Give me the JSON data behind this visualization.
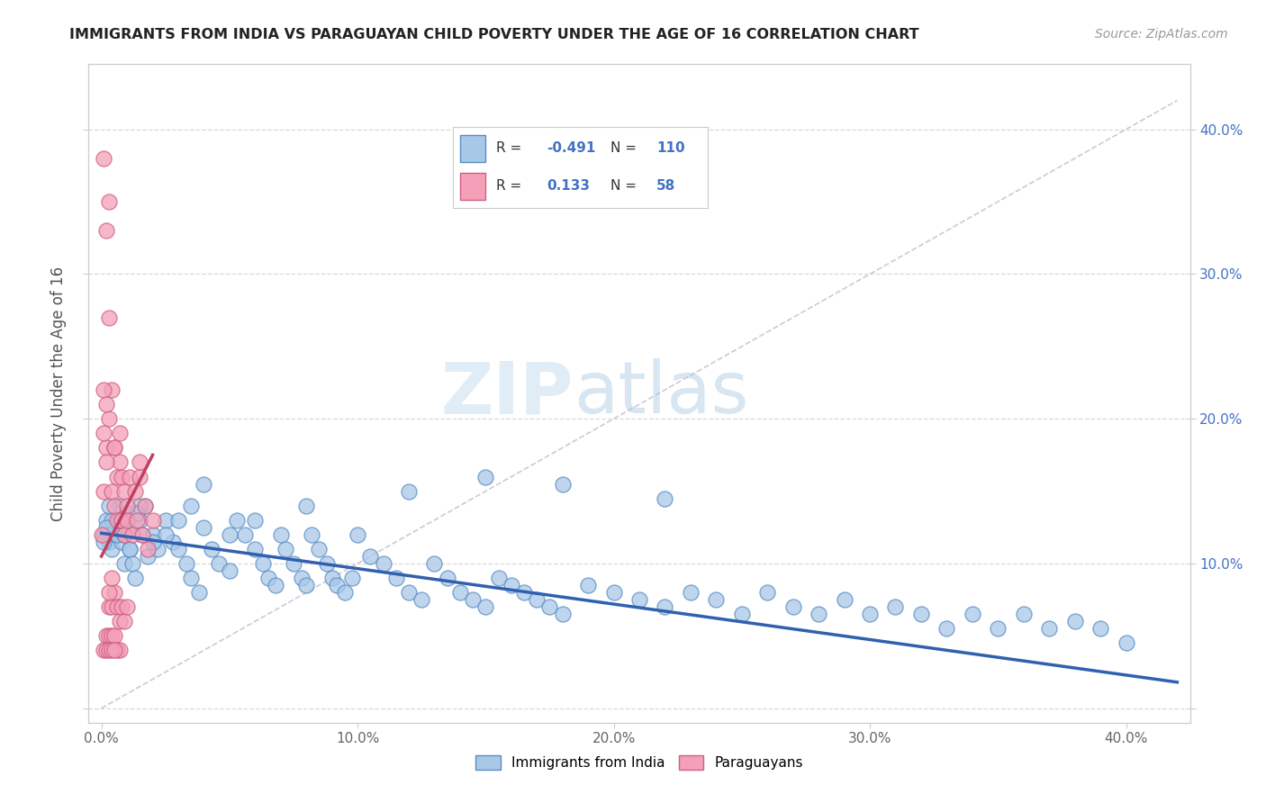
{
  "title": "IMMIGRANTS FROM INDIA VS PARAGUAYAN CHILD POVERTY UNDER THE AGE OF 16 CORRELATION CHART",
  "source": "Source: ZipAtlas.com",
  "ylabel": "Child Poverty Under the Age of 16",
  "x_ticks": [
    0.0,
    0.1,
    0.2,
    0.3,
    0.4
  ],
  "x_tick_labels": [
    "0.0%",
    "10.0%",
    "20.0%",
    "30.0%",
    "40.0%"
  ],
  "y_ticks": [
    0.0,
    0.1,
    0.2,
    0.3,
    0.4
  ],
  "y_right_labels": [
    "",
    "10.0%",
    "20.0%",
    "30.0%",
    "40.0%"
  ],
  "xlim": [
    -0.005,
    0.425
  ],
  "ylim": [
    -0.01,
    0.445
  ],
  "color_blue": "#a8c8e8",
  "color_blue_dark": "#5b8ec4",
  "color_blue_trend": "#3060b0",
  "color_pink": "#f4a0b8",
  "color_pink_dark": "#d06080",
  "color_pink_trend": "#c04060",
  "color_ref_line": "#c8b8d0",
  "watermark_zip": "ZIP",
  "watermark_atlas": "atlas",
  "blue_scatter_x": [
    0.001,
    0.002,
    0.003,
    0.004,
    0.005,
    0.006,
    0.007,
    0.008,
    0.009,
    0.01,
    0.011,
    0.012,
    0.013,
    0.015,
    0.016,
    0.017,
    0.018,
    0.02,
    0.022,
    0.025,
    0.028,
    0.03,
    0.033,
    0.035,
    0.038,
    0.04,
    0.043,
    0.046,
    0.05,
    0.053,
    0.056,
    0.06,
    0.063,
    0.065,
    0.068,
    0.07,
    0.072,
    0.075,
    0.078,
    0.08,
    0.082,
    0.085,
    0.088,
    0.09,
    0.092,
    0.095,
    0.098,
    0.1,
    0.105,
    0.11,
    0.115,
    0.12,
    0.125,
    0.13,
    0.135,
    0.14,
    0.145,
    0.15,
    0.155,
    0.16,
    0.165,
    0.17,
    0.175,
    0.18,
    0.19,
    0.2,
    0.21,
    0.22,
    0.23,
    0.24,
    0.25,
    0.26,
    0.27,
    0.28,
    0.29,
    0.3,
    0.31,
    0.32,
    0.33,
    0.34,
    0.35,
    0.36,
    0.37,
    0.38,
    0.39,
    0.4,
    0.18,
    0.22,
    0.15,
    0.12,
    0.08,
    0.06,
    0.05,
    0.04,
    0.035,
    0.03,
    0.025,
    0.02,
    0.015,
    0.01,
    0.008,
    0.006,
    0.004,
    0.002,
    0.001,
    0.003,
    0.007,
    0.009,
    0.011,
    0.014
  ],
  "blue_scatter_y": [
    0.12,
    0.13,
    0.115,
    0.11,
    0.13,
    0.12,
    0.14,
    0.115,
    0.1,
    0.125,
    0.11,
    0.1,
    0.09,
    0.13,
    0.12,
    0.14,
    0.105,
    0.12,
    0.11,
    0.13,
    0.115,
    0.11,
    0.1,
    0.09,
    0.08,
    0.125,
    0.11,
    0.1,
    0.095,
    0.13,
    0.12,
    0.11,
    0.1,
    0.09,
    0.085,
    0.12,
    0.11,
    0.1,
    0.09,
    0.085,
    0.12,
    0.11,
    0.1,
    0.09,
    0.085,
    0.08,
    0.09,
    0.12,
    0.105,
    0.1,
    0.09,
    0.08,
    0.075,
    0.1,
    0.09,
    0.08,
    0.075,
    0.07,
    0.09,
    0.085,
    0.08,
    0.075,
    0.07,
    0.065,
    0.085,
    0.08,
    0.075,
    0.07,
    0.08,
    0.075,
    0.065,
    0.08,
    0.07,
    0.065,
    0.075,
    0.065,
    0.07,
    0.065,
    0.055,
    0.065,
    0.055,
    0.065,
    0.055,
    0.06,
    0.055,
    0.045,
    0.155,
    0.145,
    0.16,
    0.15,
    0.14,
    0.13,
    0.12,
    0.155,
    0.14,
    0.13,
    0.12,
    0.115,
    0.14,
    0.135,
    0.125,
    0.12,
    0.13,
    0.125,
    0.115,
    0.14,
    0.13,
    0.12,
    0.11,
    0.135
  ],
  "pink_scatter_x": [
    0.0,
    0.001,
    0.001,
    0.002,
    0.002,
    0.003,
    0.003,
    0.004,
    0.004,
    0.005,
    0.005,
    0.006,
    0.006,
    0.007,
    0.007,
    0.008,
    0.008,
    0.009,
    0.009,
    0.01,
    0.01,
    0.011,
    0.012,
    0.013,
    0.014,
    0.015,
    0.016,
    0.017,
    0.018,
    0.02,
    0.001,
    0.002,
    0.003,
    0.004,
    0.005,
    0.006,
    0.007,
    0.008,
    0.009,
    0.01,
    0.002,
    0.003,
    0.004,
    0.005,
    0.006,
    0.007,
    0.001,
    0.002,
    0.003,
    0.004,
    0.001,
    0.002,
    0.003,
    0.004,
    0.005,
    0.003,
    0.005,
    0.015
  ],
  "pink_scatter_y": [
    0.12,
    0.38,
    0.15,
    0.33,
    0.18,
    0.35,
    0.2,
    0.22,
    0.15,
    0.18,
    0.14,
    0.16,
    0.13,
    0.17,
    0.19,
    0.13,
    0.16,
    0.12,
    0.15,
    0.14,
    0.13,
    0.16,
    0.12,
    0.15,
    0.13,
    0.16,
    0.12,
    0.14,
    0.11,
    0.13,
    0.22,
    0.21,
    0.07,
    0.07,
    0.08,
    0.07,
    0.06,
    0.07,
    0.06,
    0.07,
    0.05,
    0.05,
    0.05,
    0.05,
    0.04,
    0.04,
    0.19,
    0.17,
    0.08,
    0.09,
    0.04,
    0.04,
    0.04,
    0.04,
    0.04,
    0.27,
    0.18,
    0.17
  ],
  "blue_trend_x": [
    0.0,
    0.42
  ],
  "blue_trend_y": [
    0.121,
    0.018
  ],
  "pink_trend_x": [
    0.0,
    0.02
  ],
  "pink_trend_y": [
    0.105,
    0.175
  ]
}
